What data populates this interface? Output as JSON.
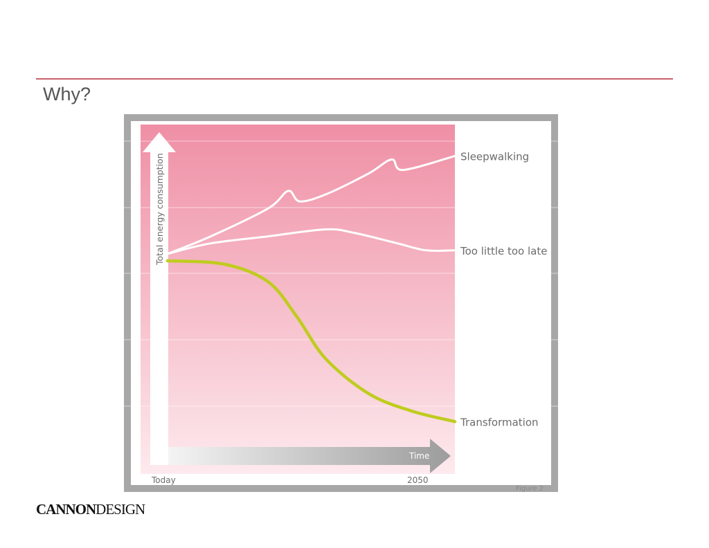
{
  "slide": {
    "title": "Why?"
  },
  "logo": {
    "part1": "CANNON",
    "part2": "DESIGN"
  },
  "colors": {
    "rule": "#c7606a",
    "frame": "#a7a7a7",
    "gradient_top": "#ef8fa5",
    "gradient_bottom": "#fdeaee",
    "white_series": "#ffffff",
    "transformation": "#bfcc1e",
    "label_text": "#6b6b6b"
  },
  "chart_data": {
    "type": "line",
    "ylabel": "Total energy consumption",
    "xlabel": "Time",
    "x_tick_labels": [
      "Today",
      "2050"
    ],
    "xlim": [
      0,
      1
    ],
    "ylim": [
      0,
      1
    ],
    "series": [
      {
        "name": "Sleepwalking",
        "color": "#ffffff",
        "points": [
          [
            0.0,
            0.63
          ],
          [
            0.15,
            0.68
          ],
          [
            0.35,
            0.76
          ],
          [
            0.42,
            0.81
          ],
          [
            0.46,
            0.78
          ],
          [
            0.55,
            0.8
          ],
          [
            0.7,
            0.86
          ],
          [
            0.78,
            0.9
          ],
          [
            0.82,
            0.87
          ],
          [
            1.0,
            0.91
          ]
        ]
      },
      {
        "name": "Too little too late",
        "color": "#ffffff",
        "points": [
          [
            0.0,
            0.63
          ],
          [
            0.15,
            0.66
          ],
          [
            0.35,
            0.68
          ],
          [
            0.55,
            0.7
          ],
          [
            0.65,
            0.69
          ],
          [
            0.8,
            0.66
          ],
          [
            0.9,
            0.64
          ],
          [
            1.0,
            0.64
          ]
        ]
      },
      {
        "name": "Transformation",
        "color": "#bfcc1e",
        "points": [
          [
            0.0,
            0.61
          ],
          [
            0.2,
            0.6
          ],
          [
            0.35,
            0.55
          ],
          [
            0.45,
            0.45
          ],
          [
            0.55,
            0.33
          ],
          [
            0.7,
            0.23
          ],
          [
            0.85,
            0.18
          ],
          [
            1.0,
            0.15
          ]
        ]
      }
    ],
    "grid": true,
    "legend": "right, inline at line ends",
    "footnote": "Figure 2"
  }
}
